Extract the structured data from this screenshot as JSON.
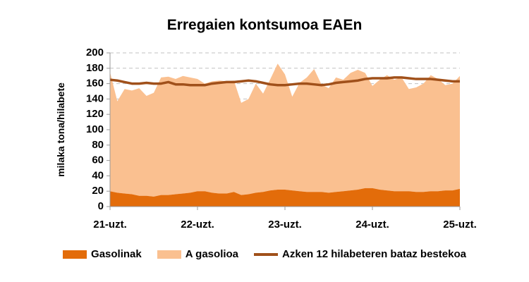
{
  "colors": {
    "gasoline": "#e36c0a",
    "diesel": "#fac090",
    "average": "#a0501a",
    "grid": "#c0c0c0",
    "axis": "#999999"
  },
  "chart_data": {
    "type": "area",
    "title": "Erregaien kontsumoa EAEn",
    "ylabel": "milaka tona/hilabete",
    "ylim": [
      0,
      200
    ],
    "yticks": [
      0,
      20,
      40,
      60,
      80,
      100,
      120,
      140,
      160,
      180,
      200
    ],
    "grid": "horizontal dashed, from 120 to 200",
    "legend_position": "bottom",
    "x_tick_labels": [
      "21-uzt.",
      "22-uzt.",
      "23-uzt.",
      "24-uzt.",
      "25-uzt."
    ],
    "x_tick_months": [
      0,
      12,
      24,
      36,
      48
    ],
    "months": 49,
    "series": [
      {
        "name": "Gasolinak",
        "kind": "stacked-area",
        "values": [
          20,
          18,
          17,
          16,
          14,
          14,
          13,
          15,
          15,
          16,
          17,
          18,
          20,
          20,
          18,
          17,
          17,
          19,
          15,
          16,
          18,
          19,
          21,
          22,
          22,
          21,
          20,
          19,
          19,
          19,
          18,
          19,
          20,
          21,
          22,
          24,
          24,
          22,
          21,
          20,
          20,
          20,
          19,
          19,
          20,
          20,
          21,
          21,
          23
        ]
      },
      {
        "name": "A gasolioa",
        "kind": "stacked-area",
        "values": [
          155,
          119,
          136,
          135,
          140,
          130,
          135,
          153,
          154,
          150,
          153,
          150,
          146,
          140,
          145,
          147,
          146,
          145,
          120,
          124,
          142,
          128,
          145,
          164,
          150,
          122,
          141,
          149,
          160,
          140,
          136,
          149,
          145,
          153,
          156,
          150,
          133,
          143,
          150,
          145,
          148,
          133,
          136,
          141,
          151,
          146,
          137,
          139,
          147
        ]
      },
      {
        "name": "Azken 12 hilabeteren bataz bestekoa",
        "kind": "line",
        "values": [
          165,
          164,
          162,
          160,
          160,
          161,
          160,
          160,
          162,
          159,
          159,
          158,
          158,
          158,
          160,
          161,
          162,
          162,
          163,
          164,
          163,
          161,
          159,
          158,
          158,
          159,
          160,
          160,
          159,
          158,
          159,
          161,
          162,
          163,
          164,
          166,
          167,
          167,
          167,
          168,
          168,
          167,
          166,
          166,
          166,
          165,
          164,
          163,
          163
        ]
      }
    ]
  }
}
